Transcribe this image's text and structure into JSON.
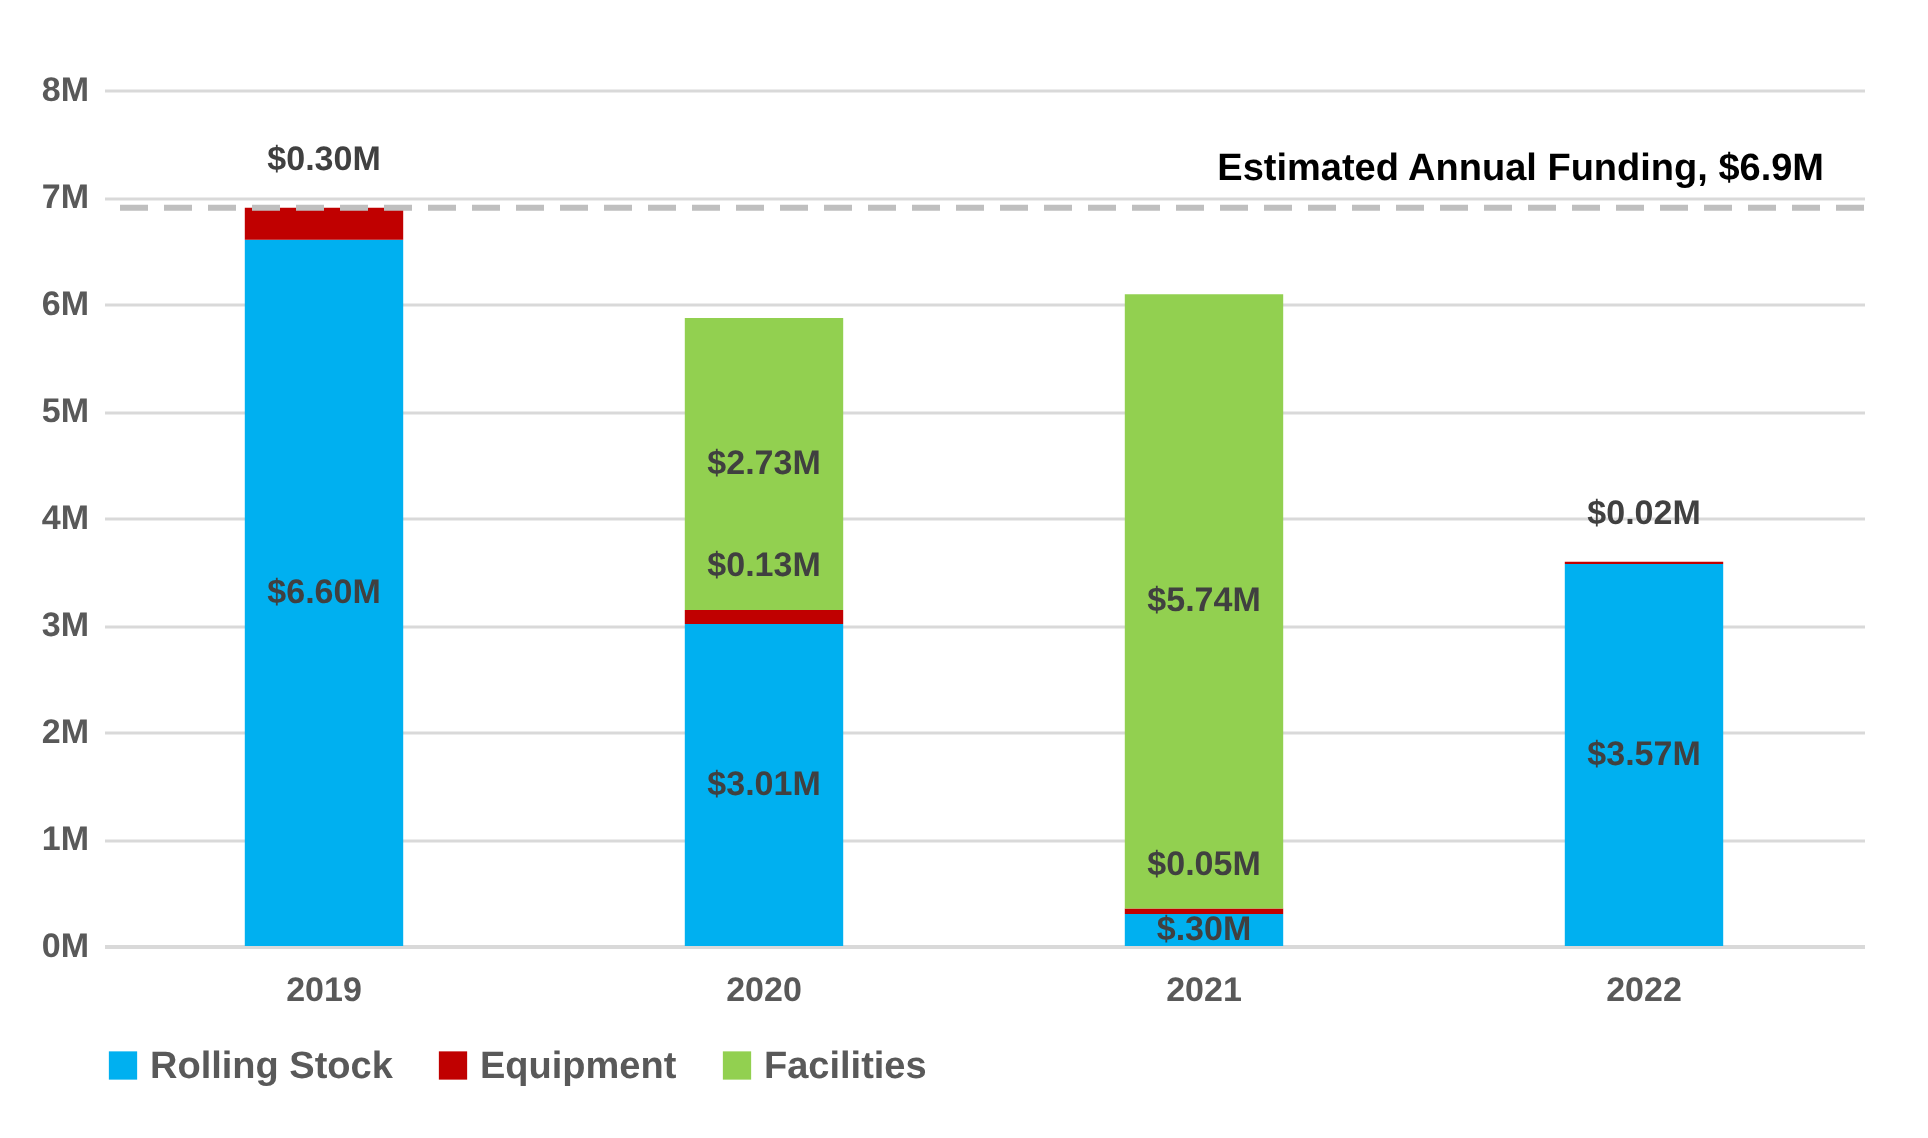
{
  "chart_data": {
    "type": "bar",
    "stacked": true,
    "categories": [
      "2019",
      "2020",
      "2021",
      "2022"
    ],
    "series": [
      {
        "name": "Rolling Stock",
        "color": "#00b0f0",
        "values": [
          6.6,
          3.01,
          0.3,
          3.57
        ],
        "value_labels": [
          "$6.60M",
          "$3.01M",
          "$.30M",
          "$3.57M"
        ]
      },
      {
        "name": "Equipment",
        "color": "#c00000",
        "values": [
          0.3,
          0.13,
          0.05,
          0.02
        ],
        "value_labels": [
          "$0.30M",
          "$0.13M",
          "$0.05M",
          "$0.02M"
        ]
      },
      {
        "name": "Facilities",
        "color": "#92d050",
        "values": [
          null,
          2.73,
          5.74,
          null
        ],
        "value_labels": [
          null,
          "$2.73M",
          "$5.74M",
          null
        ]
      }
    ],
    "ylim": [
      0,
      8
    ],
    "yticks": [
      {
        "value": 0,
        "label": "0M"
      },
      {
        "value": 1,
        "label": "1M"
      },
      {
        "value": 2,
        "label": "2M"
      },
      {
        "value": 3,
        "label": "3M"
      },
      {
        "value": 4,
        "label": "4M"
      },
      {
        "value": 5,
        "label": "5M"
      },
      {
        "value": 6,
        "label": "6M"
      },
      {
        "value": 7,
        "label": "7M"
      },
      {
        "value": 8,
        "label": "8M"
      }
    ],
    "grid": "y",
    "legend": "bottom",
    "ref_lines": [
      {
        "axis": "y",
        "value": 6.9,
        "label": "Estimated Annual Funding, $6.9M",
        "color": "#bfbfbf",
        "line_style": "dashed"
      }
    ]
  }
}
